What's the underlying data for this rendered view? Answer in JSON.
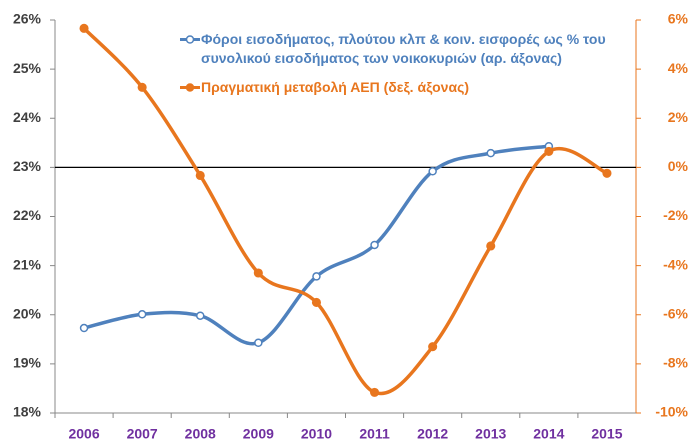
{
  "chart_data": {
    "type": "line",
    "categories": [
      "2006",
      "2007",
      "2008",
      "2009",
      "2010",
      "2011",
      "2012",
      "2013",
      "2014",
      "2015"
    ],
    "series": [
      {
        "name": "Φόροι εισοδήματος, πλούτου κλπ & κοιν. εισφορές ως % του συνολικού εισοδήματος των νοικοκυριών (αρ. άξονας)",
        "color": "#4f81bd",
        "axis": "y",
        "marker": "open",
        "values": [
          19.73,
          20.01,
          19.98,
          19.43,
          20.78,
          21.42,
          22.92,
          23.29,
          23.43,
          null
        ]
      },
      {
        "name": "Πραγματική μεταβολή ΑΕΠ (δεξ. άξονας)",
        "color": "#e8761e",
        "axis": "y2",
        "marker": "filled",
        "values": [
          5.66,
          3.26,
          -0.33,
          -4.3,
          -5.5,
          -9.16,
          -7.3,
          -3.2,
          0.65,
          -0.24
        ]
      }
    ],
    "ylim": [
      18,
      26
    ],
    "yticks": [
      {
        "value": 18,
        "label": "18%"
      },
      {
        "value": 19,
        "label": "19%"
      },
      {
        "value": 20,
        "label": "20%"
      },
      {
        "value": 21,
        "label": "21%"
      },
      {
        "value": 22,
        "label": "22%"
      },
      {
        "value": 23,
        "label": "23%"
      },
      {
        "value": 24,
        "label": "24%"
      },
      {
        "value": 25,
        "label": "25%"
      },
      {
        "value": 26,
        "label": "26%"
      }
    ],
    "y2lim": [
      -10,
      6
    ],
    "y2ticks": [
      {
        "value": -10,
        "label": "-10%"
      },
      {
        "value": -8,
        "label": "-8%"
      },
      {
        "value": -6,
        "label": "-6%"
      },
      {
        "value": -4,
        "label": "-4%"
      },
      {
        "value": -2,
        "label": "-2%"
      },
      {
        "value": 0,
        "label": "0%"
      },
      {
        "value": 2,
        "label": "2%"
      },
      {
        "value": 4,
        "label": "4%"
      },
      {
        "value": 6,
        "label": "6%"
      }
    ],
    "y2_zero_line": true,
    "smooth": true
  }
}
